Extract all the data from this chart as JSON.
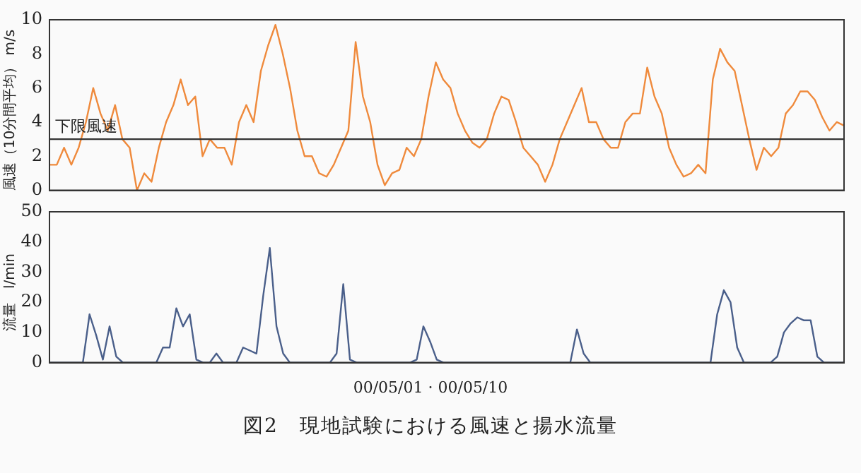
{
  "chart_data": [
    {
      "type": "line",
      "ylabel": "風速（10分間平均） m/s",
      "categories": [
        null,
        null,
        null,
        null,
        null,
        null,
        null,
        null,
        null,
        null,
        null,
        null,
        null,
        null,
        null,
        null,
        null,
        null,
        null,
        null,
        null,
        null,
        null,
        null,
        null,
        null,
        null,
        null,
        null,
        null,
        null,
        null,
        null,
        null,
        null,
        null,
        null,
        null,
        null,
        null,
        null,
        null,
        null,
        null,
        null,
        null,
        null,
        null,
        null,
        null,
        null,
        null,
        null,
        null,
        null,
        null,
        null,
        null,
        null,
        null,
        null,
        null,
        null,
        null,
        null,
        null,
        null,
        null,
        null,
        null,
        null,
        null,
        null,
        null,
        null,
        null,
        null,
        null,
        null,
        null,
        null,
        null,
        null,
        null,
        null,
        null,
        null,
        null,
        null,
        null,
        null,
        null,
        null,
        null,
        null,
        null,
        null,
        null,
        null,
        null,
        null,
        null,
        null,
        null,
        null,
        null,
        null,
        null,
        null,
        null
      ],
      "series": [
        {
          "color": "#ef8a3c",
          "values": [
            1.5,
            1.5,
            2.5,
            1.5,
            2.5,
            4,
            6,
            4.5,
            3.5,
            5,
            3,
            2.5,
            0,
            1,
            0.5,
            2.5,
            4,
            5,
            6.5,
            5,
            5.5,
            2,
            3,
            2.5,
            2.5,
            1.5,
            4,
            5,
            4,
            7,
            8.5,
            9.7,
            8,
            6,
            3.5,
            2,
            2,
            1,
            0.8,
            1.5,
            2.5,
            3.5,
            8.7,
            5.5,
            4,
            1.5,
            0.3,
            1,
            1.2,
            2.5,
            2,
            3,
            5.5,
            7.5,
            6.5,
            6,
            4.5,
            3.5,
            2.8,
            2.5,
            3,
            4.5,
            5.5,
            5.3,
            4,
            2.5,
            2,
            1.5,
            0.5,
            1.5,
            3,
            4,
            5,
            6,
            4,
            4,
            3,
            2.5,
            2.5,
            4,
            4.5,
            4.5,
            7.2,
            5.5,
            4.5,
            2.5,
            1.5,
            0.8,
            1,
            1.5,
            1,
            6.5,
            8.3,
            7.5,
            7,
            5,
            3,
            1.2,
            2.5,
            2,
            2.5,
            4.5,
            5,
            5.8,
            5.8,
            5.3,
            4.3,
            3.5,
            4,
            3.8
          ]
        }
      ],
      "ylim": [
        0,
        10
      ],
      "yticks": [
        0,
        2,
        4,
        6,
        8,
        10
      ],
      "tick_labels": "y",
      "grid": false,
      "legend": false,
      "marker": "none",
      "ref_lines": [
        {
          "axis": "y",
          "value": 3,
          "label": "下限風速",
          "color": "#333333"
        }
      ]
    },
    {
      "type": "line",
      "ylabel": "流量　l/min",
      "xlabel": "00/05/01 · 00/05/10",
      "title": "図2　現地試験における風速と揚水流量",
      "categories": [
        null,
        null,
        null,
        null,
        null,
        null,
        null,
        null,
        null,
        null,
        null,
        null,
        null,
        null,
        null,
        null,
        null,
        null,
        null,
        null,
        null,
        null,
        null,
        null,
        null,
        null,
        null,
        null,
        null,
        null,
        null,
        null,
        null,
        null,
        null,
        null,
        null,
        null,
        null,
        null,
        null,
        null,
        null,
        null,
        null,
        null,
        null,
        null,
        null,
        null,
        null,
        null,
        null,
        null,
        null,
        null,
        null,
        null,
        null,
        null,
        null,
        null,
        null,
        null,
        null,
        null,
        null,
        null,
        null,
        null,
        null,
        null,
        null,
        null,
        null,
        null,
        null,
        null,
        null,
        null,
        null,
        null,
        null,
        null,
        null,
        null,
        null,
        null,
        null,
        null,
        null,
        null,
        null,
        null,
        null,
        null,
        null,
        null,
        null,
        null,
        null,
        null,
        null,
        null,
        null,
        null,
        null,
        null,
        null,
        null,
        null,
        null,
        null,
        null,
        null,
        null,
        null,
        null,
        null,
        null
      ],
      "series": [
        {
          "color": "#4a5f8a",
          "values": [
            0,
            0,
            0,
            0,
            0,
            0,
            16,
            9,
            1,
            12,
            2,
            0,
            0,
            0,
            0,
            0,
            0,
            5,
            5,
            18,
            12,
            16,
            1,
            0,
            0,
            3,
            0,
            0,
            0,
            5,
            4,
            3,
            22,
            38,
            12,
            3,
            0,
            0,
            0,
            0,
            0,
            0,
            0,
            3,
            26,
            1,
            0,
            0,
            0,
            0,
            0,
            0,
            0,
            0,
            0,
            1,
            12,
            7,
            1,
            0,
            0,
            0,
            0,
            0,
            0,
            0,
            0,
            0,
            0,
            0,
            0,
            0,
            0,
            0,
            0,
            0,
            0,
            0,
            0,
            11,
            3,
            0,
            0,
            0,
            0,
            0,
            0,
            0,
            0,
            0,
            0,
            0,
            0,
            0,
            0,
            0,
            0,
            0,
            0,
            0,
            16,
            24,
            20,
            5,
            0,
            0,
            0,
            0,
            0,
            2,
            10,
            13,
            15,
            14,
            14,
            2,
            0,
            0,
            0,
            0
          ]
        }
      ],
      "ylim": [
        0,
        50
      ],
      "yticks": [
        0,
        10,
        20,
        30,
        40,
        50
      ],
      "tick_labels": "y",
      "grid": false,
      "legend": false,
      "marker": "none"
    }
  ]
}
